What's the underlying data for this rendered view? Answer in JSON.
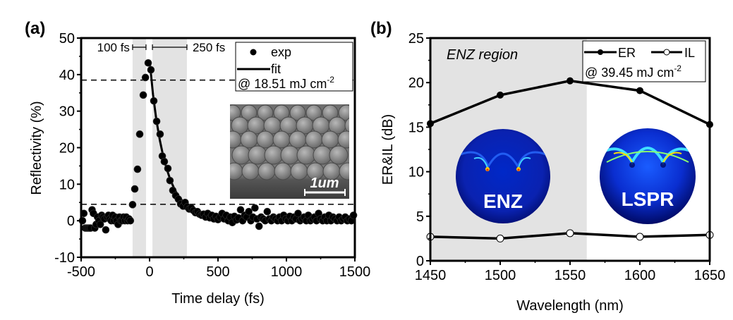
{
  "colors": {
    "shade": "#e3e3e3",
    "axis": "#000000",
    "marker": "#000000",
    "enz_bg": "#00107a",
    "field_hot": "#ff3000",
    "field_warm": "#ffe000",
    "field_cyan": "#20c0ff",
    "sem_bg": "#5a5a5a"
  },
  "chart_data": [
    {
      "id": "a",
      "type": "scatter",
      "panel_label": "(a)",
      "title": "",
      "xlabel": "Time delay (fs)",
      "ylabel": "Reflectivity (%)",
      "xlim": [
        -500,
        1500
      ],
      "ylim": [
        -10,
        50
      ],
      "xticks": [
        -500,
        0,
        500,
        1000,
        1500
      ],
      "xtick_labels": [
        "-500",
        "0",
        "500",
        "1000",
        "1500"
      ],
      "yticks": [
        -10,
        0,
        10,
        20,
        30,
        40,
        50
      ],
      "ytick_labels": [
        "-10",
        "0",
        "10",
        "20",
        "30",
        "40",
        "50"
      ],
      "grid": false,
      "shaded_regions": [
        {
          "x0": -124,
          "x1": -26,
          "label": "100 fs"
        },
        {
          "x0": 21,
          "x1": 273,
          "label": "250 fs"
        }
      ],
      "hlines_dashed": [
        38.5,
        4.5
      ],
      "legend": {
        "placement": "top-right",
        "entries": [
          {
            "label": "exp",
            "marker": "filled-circle"
          },
          {
            "label": "fit",
            "marker": "line"
          }
        ],
        "note": "@ 18.51 mJ cm",
        "note_sup": "-2"
      },
      "inset": {
        "type": "SEM image",
        "scale_bar_label": "1um"
      },
      "series": [
        {
          "name": "exp",
          "x": [
            -490,
            -480,
            -470,
            -460,
            -450,
            -440,
            -430,
            -420,
            -410,
            -400,
            -390,
            -380,
            -370,
            -360,
            -350,
            -340,
            -330,
            -320,
            -310,
            -300,
            -290,
            -280,
            -270,
            -260,
            -250,
            -240,
            -230,
            -220,
            -210,
            -200,
            -190,
            -180,
            -170,
            -160,
            -150,
            -140,
            -124,
            -108,
            -88,
            -72,
            -46,
            -30,
            -10,
            10,
            31,
            52,
            77,
            93,
            108,
            134,
            149,
            170,
            191,
            211,
            227,
            245,
            260,
            275,
            290,
            305,
            320,
            335,
            350,
            365,
            380,
            395,
            410,
            425,
            440,
            455,
            470,
            485,
            500,
            515,
            530,
            545,
            560,
            575,
            590,
            605,
            620,
            635,
            650,
            665,
            680,
            695,
            710,
            725,
            740,
            755,
            770,
            785,
            800,
            815,
            830,
            845,
            860,
            875,
            890,
            905,
            920,
            935,
            950,
            965,
            980,
            995,
            1010,
            1025,
            1040,
            1055,
            1070,
            1085,
            1100,
            1115,
            1130,
            1145,
            1160,
            1175,
            1190,
            1205,
            1220,
            1235,
            1250,
            1265,
            1280,
            1295,
            1310,
            1325,
            1340,
            1355,
            1370,
            1385,
            1400,
            1415,
            1430,
            1445,
            1460,
            1475,
            1490
          ],
          "y": [
            0.0,
            2.0,
            -2.0,
            -2.0,
            -2.0,
            -2.0,
            -2.0,
            3.0,
            2.0,
            -2.0,
            -1.0,
            1.0,
            0.0,
            -1.0,
            1.5,
            1.0,
            0.5,
            -2.5,
            1.0,
            1.5,
            0.5,
            0.0,
            1.5,
            0.0,
            1.0,
            0.0,
            -1.0,
            1.0,
            0.0,
            0.0,
            1.0,
            0.0,
            1.0,
            0.0,
            0.5,
            0.0,
            4.4,
            8.7,
            14.1,
            23.7,
            34.4,
            39.2,
            43.2,
            41.3,
            32.8,
            27.2,
            23.7,
            17.7,
            16.2,
            14.3,
            11.0,
            8.3,
            6.9,
            5.9,
            4.6,
            4.0,
            5.0,
            3.8,
            3.2,
            3.5,
            2.8,
            2.2,
            2.5,
            1.8,
            1.5,
            1.8,
            1.0,
            2.0,
            0.8,
            1.5,
            0.5,
            1.2,
            0.3,
            1.0,
            2.0,
            0.5,
            1.5,
            0.0,
            1.0,
            -0.5,
            1.2,
            0.2,
            0.8,
            3.0,
            0.0,
            1.5,
            1.0,
            2.5,
            0.0,
            1.0,
            3.5,
            0.5,
            -1.5,
            1.0,
            0.5,
            0.0,
            2.5,
            0.5,
            0.0,
            1.0,
            0.5,
            0.0,
            1.0,
            0.0,
            1.5,
            0.5,
            0.0,
            1.2,
            0.0,
            1.0,
            0.5,
            2.0,
            0.0,
            0.5,
            1.0,
            0.0,
            1.5,
            0.0,
            0.5,
            1.0,
            0.0,
            2.0,
            0.5,
            0.0,
            1.0,
            0.0,
            1.5,
            0.0,
            1.0,
            0.5,
            0.0,
            1.0,
            0.0,
            0.5,
            1.0,
            0.0,
            0.5,
            0.0,
            1.5
          ]
        },
        {
          "name": "fit",
          "model": "exponential decay after peak",
          "x": [
            0,
            25,
            50,
            75,
            100,
            125,
            150,
            175,
            200,
            250,
            300,
            350,
            400,
            500,
            600,
            800,
            1000,
            1200,
            1500
          ],
          "y": [
            44.0,
            34.5,
            27.5,
            22.0,
            17.6,
            14.2,
            11.4,
            9.2,
            7.4,
            4.9,
            3.3,
            2.3,
            1.6,
            0.9,
            0.6,
            0.4,
            0.3,
            0.3,
            0.3
          ]
        }
      ]
    },
    {
      "id": "b",
      "type": "line",
      "panel_label": "(b)",
      "title": "",
      "xlabel": "Wavelength (nm)",
      "ylabel": "ER&IL (dB)",
      "xlim": [
        1450,
        1650
      ],
      "ylim": [
        0,
        25
      ],
      "xticks": [
        1450,
        1500,
        1550,
        1600,
        1650
      ],
      "xtick_labels": [
        "1450",
        "1500",
        "1550",
        "1600",
        "1650"
      ],
      "yticks": [
        0,
        5,
        10,
        15,
        20,
        25
      ],
      "ytick_labels": [
        "0",
        "5",
        "10",
        "15",
        "20",
        "25"
      ],
      "grid": false,
      "shaded_regions": [
        {
          "x0": 1450,
          "x1": 1562,
          "label": "ENZ region"
        }
      ],
      "legend": {
        "placement": "top-right",
        "entries": [
          {
            "label": "ER",
            "marker": "filled-circle-line"
          },
          {
            "label": "IL",
            "marker": "open-circle-line"
          }
        ],
        "note": "@ 39.45 mJ cm",
        "note_sup": "-2"
      },
      "insets": [
        {
          "label": "ENZ",
          "type": "field map"
        },
        {
          "label": "LSPR",
          "type": "field map"
        }
      ],
      "x": [
        1450,
        1500,
        1550,
        1600,
        1650
      ],
      "series": [
        {
          "name": "ER",
          "values": [
            15.4,
            18.6,
            20.2,
            19.1,
            15.3
          ]
        },
        {
          "name": "IL",
          "values": [
            2.7,
            2.5,
            3.1,
            2.7,
            2.9
          ]
        }
      ]
    }
  ]
}
